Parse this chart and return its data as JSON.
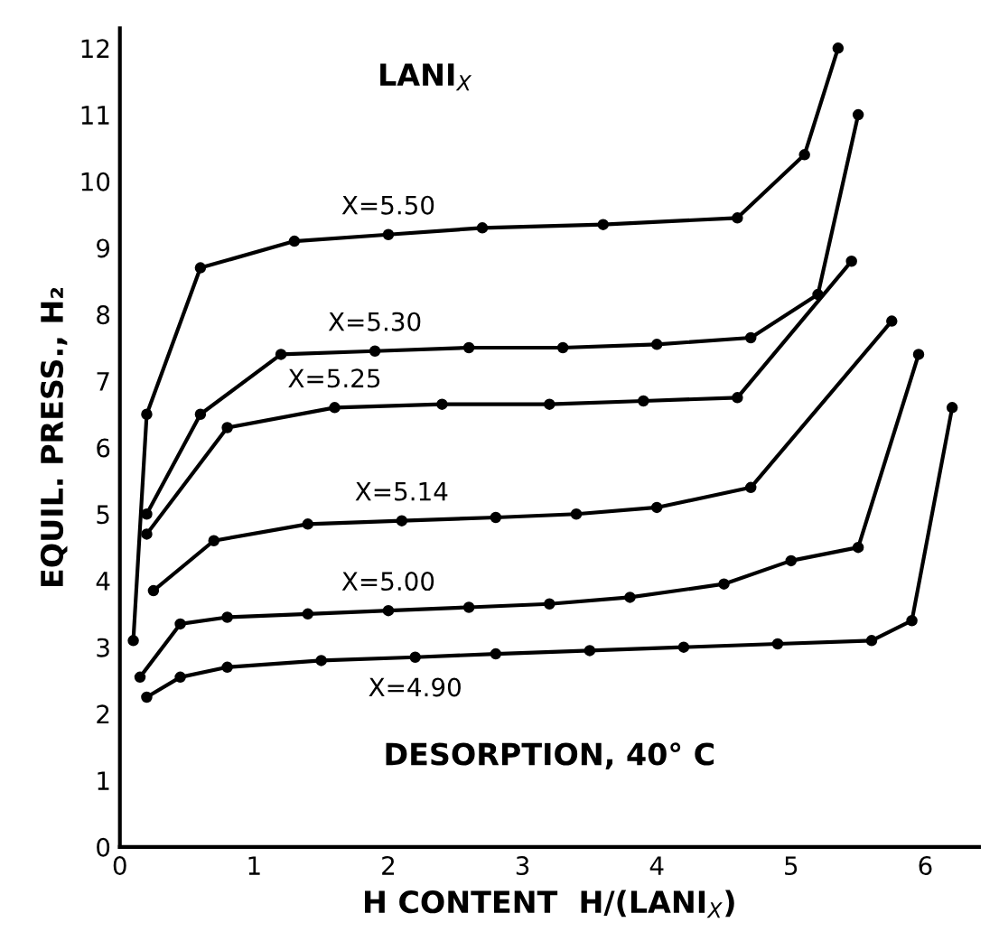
{
  "chart_data": {
    "type": "line",
    "title": "LANI$_{X}$",
    "xlabel": "H CONTENT  H/(LANI$_{X}$)",
    "ylabel": "EQUIL. PRESS., H₂",
    "series": [
      {
        "name": "X=5.50",
        "color": "#000000",
        "x": [
          0.1,
          0.2,
          0.6,
          1.3,
          2.0,
          2.7,
          3.6,
          4.6,
          5.1,
          5.35
        ],
        "values": [
          3.1,
          6.5,
          8.7,
          9.1,
          9.2,
          9.3,
          9.35,
          9.45,
          10.4,
          12.0
        ]
      },
      {
        "name": "X=5.30",
        "color": "#000000",
        "x": [
          0.2,
          0.6,
          1.2,
          1.9,
          2.6,
          3.3,
          4.0,
          4.7,
          5.2,
          5.5
        ],
        "values": [
          5.0,
          6.5,
          7.4,
          7.45,
          7.5,
          7.5,
          7.55,
          7.65,
          8.3,
          11.0
        ]
      },
      {
        "name": "X=5.25",
        "color": "#000000",
        "x": [
          0.2,
          0.8,
          1.6,
          2.4,
          3.2,
          3.9,
          4.6,
          5.45
        ],
        "values": [
          4.7,
          6.3,
          6.6,
          6.65,
          6.65,
          6.7,
          6.75,
          8.8
        ]
      },
      {
        "name": "X=5.14",
        "color": "#000000",
        "x": [
          0.25,
          0.7,
          1.4,
          2.1,
          2.8,
          3.4,
          4.0,
          4.7,
          5.75
        ],
        "values": [
          3.85,
          4.6,
          4.85,
          4.9,
          4.95,
          5.0,
          5.1,
          5.4,
          7.9
        ]
      },
      {
        "name": "X=5.00",
        "color": "#000000",
        "x": [
          0.15,
          0.45,
          0.8,
          1.4,
          2.0,
          2.6,
          3.2,
          3.8,
          4.5,
          5.0,
          5.5,
          5.95
        ],
        "values": [
          2.55,
          3.35,
          3.45,
          3.5,
          3.55,
          3.6,
          3.65,
          3.75,
          3.95,
          4.3,
          4.5,
          7.4
        ]
      },
      {
        "name": "X=4.90",
        "color": "#000000",
        "x": [
          0.2,
          0.45,
          0.8,
          1.5,
          2.2,
          2.8,
          3.5,
          4.2,
          4.9,
          5.6,
          5.9,
          6.2
        ],
        "values": [
          2.25,
          2.55,
          2.7,
          2.8,
          2.85,
          2.9,
          2.95,
          3.0,
          3.05,
          3.1,
          3.4,
          6.6
        ]
      }
    ],
    "annotations": [
      "DESORPTION, 40° C"
    ],
    "xlim": [
      0,
      6.4
    ],
    "ylim": [
      0,
      12.3
    ],
    "xticks": [
      0,
      1,
      2,
      3,
      4,
      5,
      6
    ],
    "yticks": [
      0,
      1,
      2,
      3,
      4,
      5,
      6,
      7,
      8,
      9,
      10,
      11,
      12
    ],
    "marker": "circle",
    "line_style": "solid",
    "grid": false,
    "legend": false
  }
}
